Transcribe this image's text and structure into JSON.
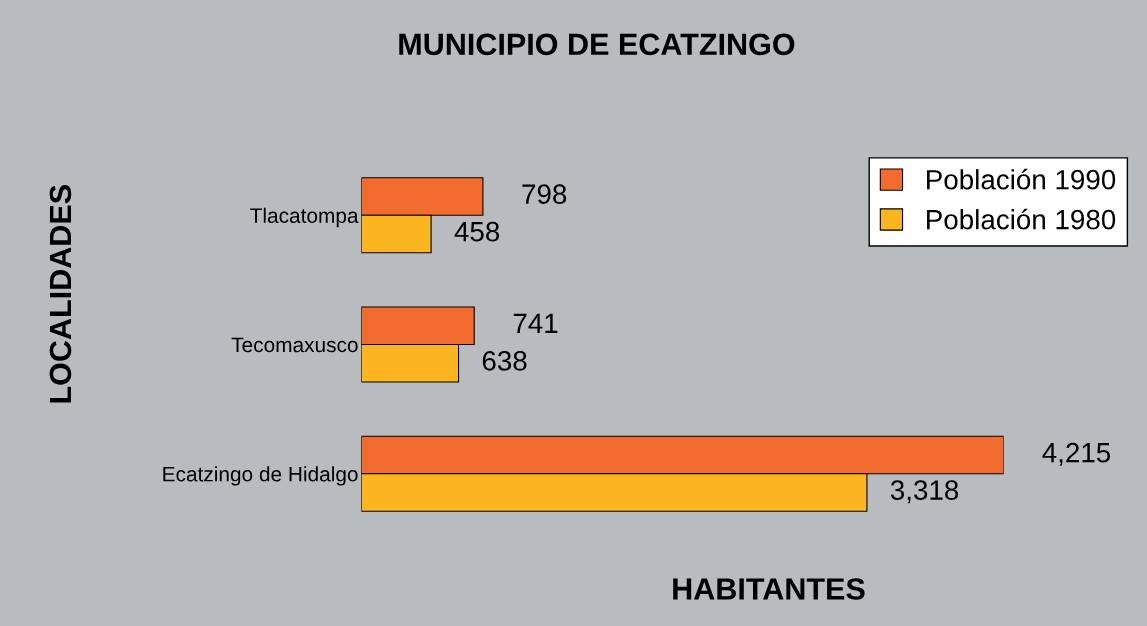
{
  "chart_data": {
    "type": "bar",
    "orientation": "horizontal",
    "title": "MUNICIPIO DE ECATZINGO",
    "xlabel": "HABITANTES",
    "ylabel": "LOCALIDADES",
    "categories": [
      "Tlacatompa",
      "Tecomaxusco",
      "Ecatzingo de Hidalgo"
    ],
    "series": [
      {
        "name": "Población 1990",
        "color": "#f26b2f",
        "values": [
          798,
          741,
          4215
        ],
        "value_labels": [
          "798",
          "741",
          "4,215"
        ]
      },
      {
        "name": "Población 1980",
        "color": "#fbb520",
        "values": [
          458,
          638,
          3318
        ],
        "value_labels": [
          "458",
          "638",
          "3,318"
        ]
      }
    ],
    "legend": "top right",
    "grid": false
  }
}
